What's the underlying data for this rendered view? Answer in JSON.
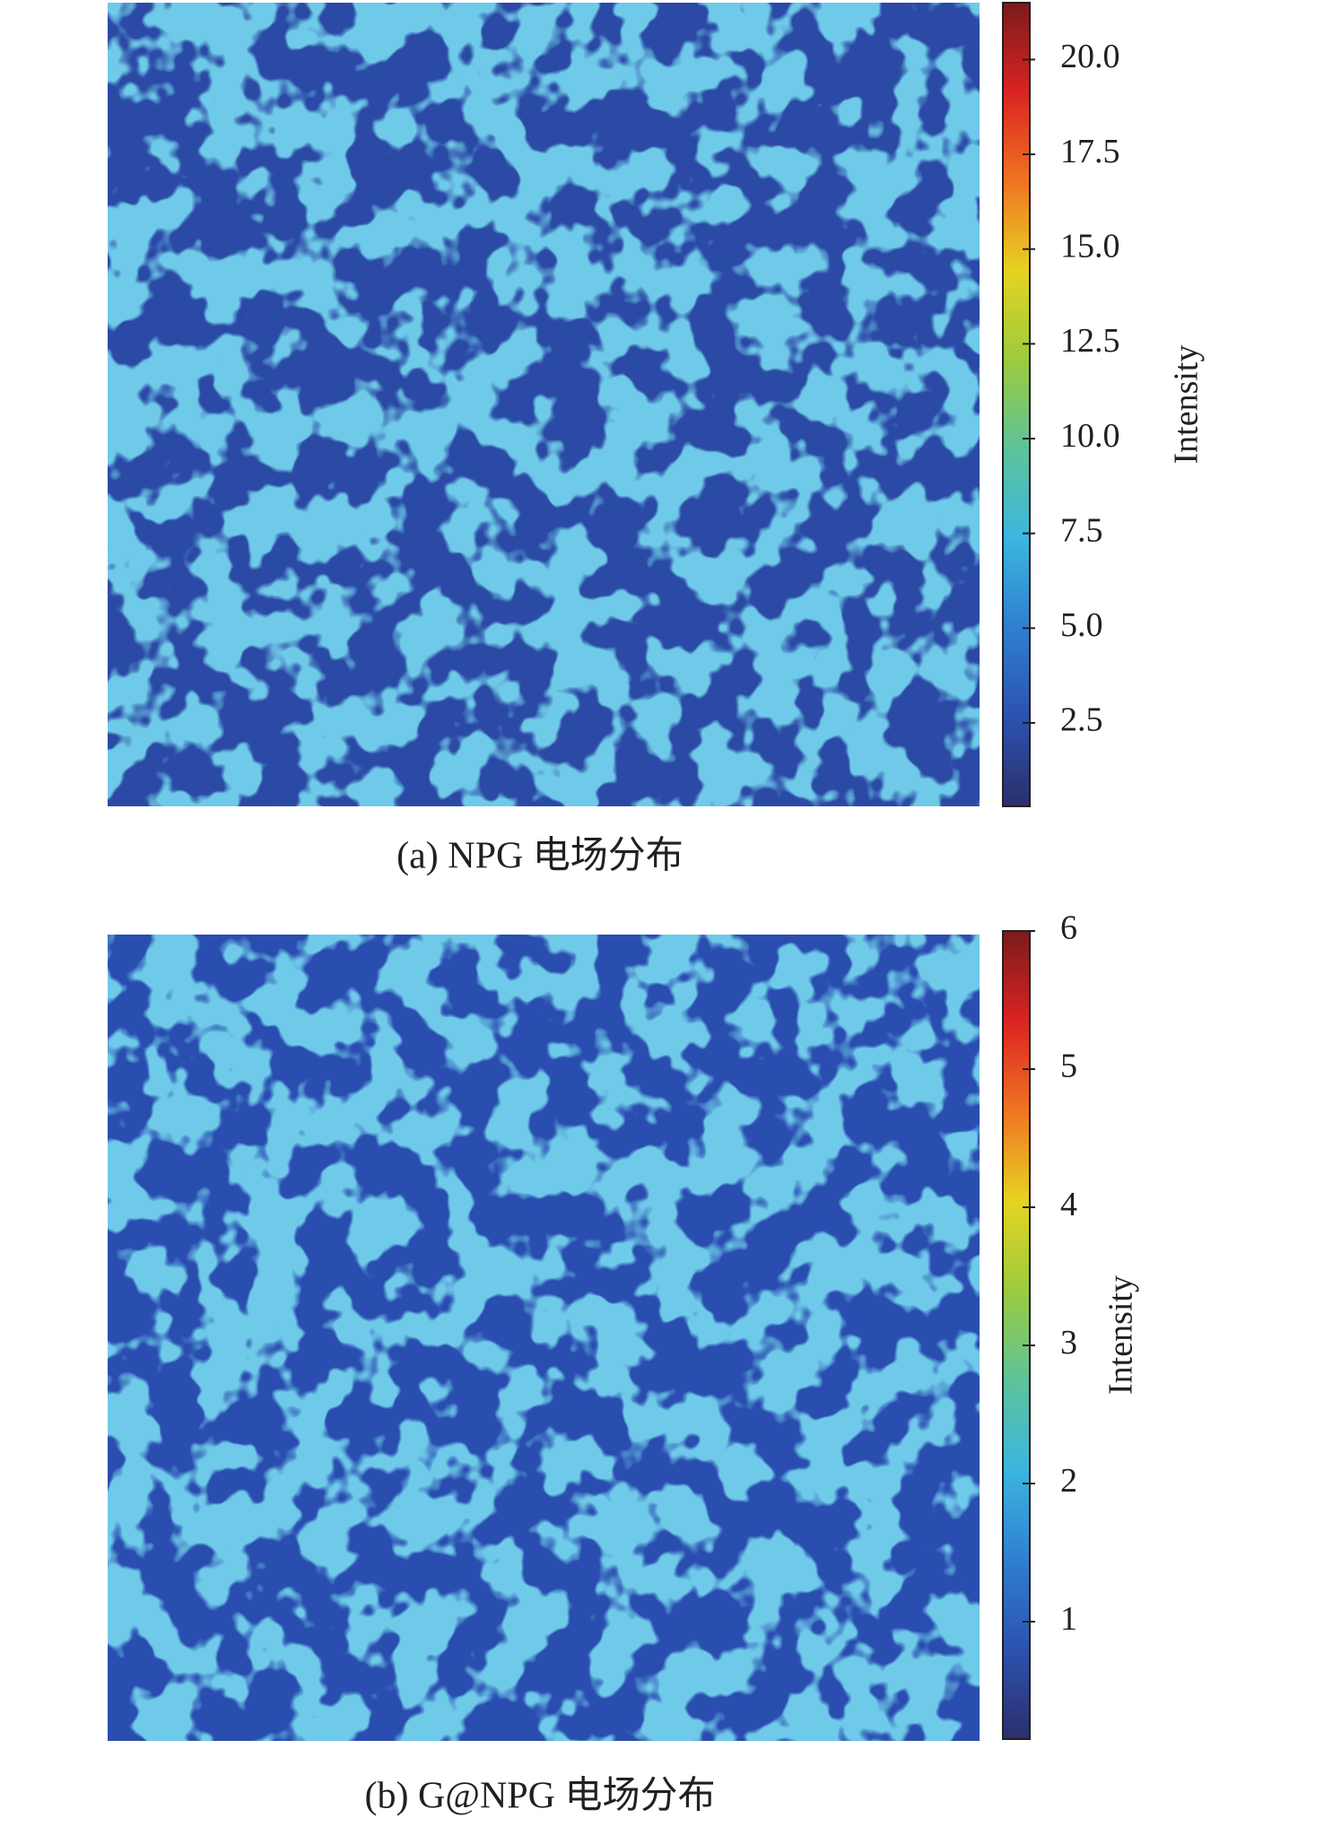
{
  "chart_data": [
    {
      "type": "heatmap",
      "caption": "(a) NPG 电场分布",
      "colorbar_label": "Intensity",
      "clim": [
        0.3,
        21.5
      ],
      "cticks": [
        2.5,
        {
          "value": 5,
          "label": "5.0"
        },
        7.5,
        {
          "value": 10,
          "label": "10.0"
        },
        12.5,
        {
          "value": 15,
          "label": "15.0"
        },
        17.5,
        {
          "value": 20,
          "label": "20.0"
        }
      ],
      "colorscale": [
        "#2b2f6b",
        "#2c52b0",
        "#2f7fd0",
        "#3bb6e0",
        "#5dc39a",
        "#9ccb3d",
        "#e6d321",
        "#f07422",
        "#da2322",
        "#7b1b1b"
      ]
    },
    {
      "type": "heatmap",
      "caption": "(b) G@NPG 电场分布",
      "colorbar_label": "Intensity",
      "clim": [
        0.15,
        6
      ],
      "cticks": [
        1,
        2,
        3,
        4,
        5,
        6
      ],
      "colorscale": [
        "#2b2f6b",
        "#2c52b0",
        "#2f7fd0",
        "#3bb6e0",
        "#5dc39a",
        "#9ccb3d",
        "#e6d321",
        "#f07422",
        "#da2322",
        "#7b1b1b"
      ]
    }
  ]
}
